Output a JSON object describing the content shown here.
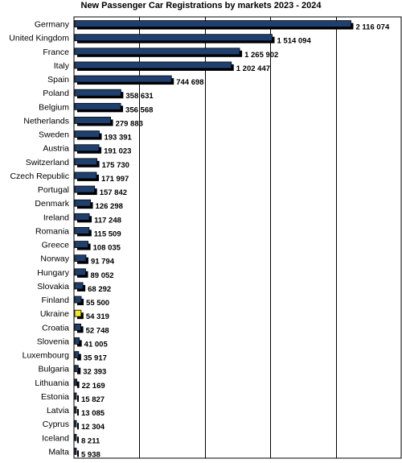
{
  "chart_data": {
    "type": "bar",
    "orientation": "horizontal",
    "title": "New Passenger Car Registrations by markets 2023 - 2024",
    "xlim": [
      0,
      2500000
    ],
    "grid": true,
    "bar_color": "#1f3f6e",
    "highlight_color": "#f2ea1a",
    "highlight_category": "Ukraine",
    "categories": [
      "Germany",
      "United Kingdom",
      "France",
      "Italy",
      "Spain",
      "Poland",
      "Belgium",
      "Netherlands",
      "Sweden",
      "Austria",
      "Switzerland",
      "Czech Republic",
      "Portugal",
      "Denmark",
      "Ireland",
      "Romania",
      "Greece",
      "Norway",
      "Hungary",
      "Slovakia",
      "Finland",
      "Ukraine",
      "Croatia",
      "Slovenia",
      "Luxembourg",
      "Bulgaria",
      "Lithuania",
      "Estonia",
      "Latvia",
      "Cyprus",
      "Iceland",
      "Malta"
    ],
    "values": [
      2116074,
      1514094,
      1265902,
      1202447,
      744698,
      358631,
      356568,
      279883,
      193391,
      191023,
      175730,
      171997,
      157842,
      126298,
      117248,
      115509,
      108035,
      91794,
      89052,
      68292,
      55500,
      54319,
      52748,
      41005,
      35917,
      32393,
      22169,
      15827,
      13085,
      12304,
      8211,
      5938
    ],
    "value_labels": [
      "2 116 074",
      "1 514 094",
      "1 265 902",
      "1 202 447",
      "744 698",
      "358 631",
      "356 568",
      "279 883",
      "193 391",
      "191 023",
      "175 730",
      "171 997",
      "157 842",
      "126 298",
      "117 248",
      "115 509",
      "108 035",
      "91 794",
      "89 052",
      "68 292",
      "55 500",
      "54 319",
      "52 748",
      "41 005",
      "35 917",
      "32 393",
      "22 169",
      "15 827",
      "13 085",
      "12 304",
      "8 211",
      "5 938"
    ]
  }
}
